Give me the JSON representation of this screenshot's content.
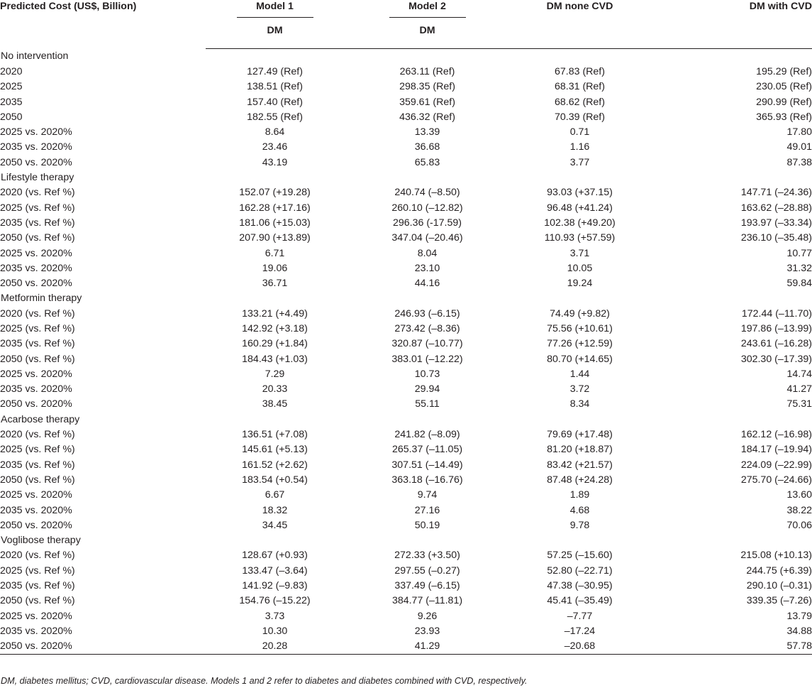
{
  "columns": {
    "label": "Predicted Cost (US$, Billion)",
    "model1": "Model 1",
    "model1_sub": "DM",
    "model2": "Model 2",
    "model2_sub": "DM",
    "dm_none_cvd": "DM none CVD",
    "dm_with_cvd": "DM with CVD"
  },
  "groups": [
    {
      "title": "No intervention",
      "rows": [
        {
          "label": "2020",
          "v": [
            "127.49 (Ref)",
            "263.11 (Ref)",
            "67.83 (Ref)",
            "195.29 (Ref)"
          ]
        },
        {
          "label": "2025",
          "v": [
            "138.51 (Ref)",
            "298.35 (Ref)",
            "68.31 (Ref)",
            "230.05 (Ref)"
          ]
        },
        {
          "label": "2035",
          "v": [
            "157.40 (Ref)",
            "359.61 (Ref)",
            "68.62 (Ref)",
            "290.99 (Ref)"
          ]
        },
        {
          "label": "2050",
          "v": [
            "182.55 (Ref)",
            "436.32 (Ref)",
            "70.39 (Ref)",
            "365.93 (Ref)"
          ]
        },
        {
          "label": "2025 vs. 2020%",
          "v": [
            "8.64",
            "13.39",
            "0.71",
            "17.80"
          ]
        },
        {
          "label": "2035 vs. 2020%",
          "v": [
            "23.46",
            "36.68",
            "1.16",
            "49.01"
          ]
        },
        {
          "label": "2050 vs. 2020%",
          "v": [
            "43.19",
            "65.83",
            "3.77",
            "87.38"
          ]
        }
      ]
    },
    {
      "title": "Lifestyle therapy",
      "rows": [
        {
          "label": "2020 (vs. Ref %)",
          "v": [
            "152.07 (+19.28)",
            "240.74 (–8.50)",
            "93.03 (+37.15)",
            "147.71 (–24.36)"
          ]
        },
        {
          "label": "2025 (vs. Ref %)",
          "v": [
            "162.28 (+17.16)",
            "260.10 (–12.82)",
            "96.48 (+41.24)",
            "163.62 (–28.88)"
          ]
        },
        {
          "label": "2035 (vs. Ref %)",
          "v": [
            "181.06 (+15.03)",
            "296.36 (-17.59)",
            "102.38 (+49.20)",
            "193.97 (–33.34)"
          ]
        },
        {
          "label": "2050 (vs. Ref %)",
          "v": [
            "207.90 (+13.89)",
            "347.04 (–20.46)",
            "110.93 (+57.59)",
            "236.10 (–35.48)"
          ]
        },
        {
          "label": "2025 vs. 2020%",
          "v": [
            "6.71",
            "8.04",
            "3.71",
            "10.77"
          ]
        },
        {
          "label": "2035 vs. 2020%",
          "v": [
            "19.06",
            "23.10",
            "10.05",
            "31.32"
          ]
        },
        {
          "label": "2050 vs. 2020%",
          "v": [
            "36.71",
            "44.16",
            "19.24",
            "59.84"
          ]
        }
      ]
    },
    {
      "title": "Metformin therapy",
      "rows": [
        {
          "label": "2020 (vs. Ref %)",
          "v": [
            "133.21 (+4.49)",
            "246.93 (–6.15)",
            "74.49 (+9.82)",
            "172.44 (–11.70)"
          ]
        },
        {
          "label": "2025 (vs. Ref %)",
          "v": [
            "142.92 (+3.18)",
            "273.42 (–8.36)",
            "75.56 (+10.61)",
            "197.86 (–13.99)"
          ]
        },
        {
          "label": "2035 (vs. Ref %)",
          "v": [
            "160.29 (+1.84)",
            "320.87 (–10.77)",
            "77.26 (+12.59)",
            "243.61 (–16.28)"
          ]
        },
        {
          "label": "2050 (vs. Ref %)",
          "v": [
            "184.43 (+1.03)",
            "383.01 (–12.22)",
            "80.70 (+14.65)",
            "302.30 (–17.39)"
          ]
        },
        {
          "label": "2025 vs. 2020%",
          "v": [
            "7.29",
            "10.73",
            "1.44",
            "14.74"
          ]
        },
        {
          "label": "2035 vs. 2020%",
          "v": [
            "20.33",
            "29.94",
            "3.72",
            "41.27"
          ]
        },
        {
          "label": "2050 vs. 2020%",
          "v": [
            "38.45",
            "55.11",
            "8.34",
            "75.31"
          ]
        }
      ]
    },
    {
      "title": "Acarbose therapy",
      "rows": [
        {
          "label": "2020 (vs. Ref %)",
          "v": [
            "136.51 (+7.08)",
            "241.82 (–8.09)",
            "79.69 (+17.48)",
            "162.12 (–16.98)"
          ]
        },
        {
          "label": "2025 (vs. Ref %)",
          "v": [
            "145.61 (+5.13)",
            "265.37 (–11.05)",
            "81.20 (+18.87)",
            "184.17 (–19.94)"
          ]
        },
        {
          "label": "2035 (vs. Ref %)",
          "v": [
            "161.52 (+2.62)",
            "307.51 (–14.49)",
            "83.42 (+21.57)",
            "224.09 (–22.99)"
          ]
        },
        {
          "label": "2050 (vs. Ref %)",
          "v": [
            "183.54 (+0.54)",
            "363.18 (–16.76)",
            "87.48 (+24.28)",
            "275.70 (–24.66)"
          ]
        },
        {
          "label": "2025 vs. 2020%",
          "v": [
            "6.67",
            "9.74",
            "1.89",
            "13.60"
          ]
        },
        {
          "label": "2035 vs. 2020%",
          "v": [
            "18.32",
            "27.16",
            "4.68",
            "38.22"
          ]
        },
        {
          "label": "2050 vs. 2020%",
          "v": [
            "34.45",
            "50.19",
            "9.78",
            "70.06"
          ]
        }
      ]
    },
    {
      "title": "Voglibose therapy",
      "rows": [
        {
          "label": "2020 (vs. Ref %)",
          "v": [
            "128.67 (+0.93)",
            "272.33 (+3.50)",
            "57.25 (–15.60)",
            "215.08 (+10.13)"
          ]
        },
        {
          "label": "2025 (vs. Ref %)",
          "v": [
            "133.47 (–3.64)",
            "297.55 (–0.27)",
            "52.80 (–22.71)",
            "244.75 (+6.39)"
          ]
        },
        {
          "label": "2035 (vs. Ref %)",
          "v": [
            "141.92 (–9.83)",
            "337.49 (–6.15)",
            "47.38 (–30.95)",
            "290.10 (–0.31)"
          ]
        },
        {
          "label": "2050 (vs. Ref %)",
          "v": [
            "154.76 (–15.22)",
            "384.77 (–11.81)",
            "45.41 (–35.49)",
            "339.35 (–7.26)"
          ]
        },
        {
          "label": "2025 vs. 2020%",
          "v": [
            "3.73",
            "9.26",
            "–7.77",
            "13.79"
          ]
        },
        {
          "label": "2035 vs. 2020%",
          "v": [
            "10.30",
            "23.93",
            "–17.24",
            "34.88"
          ]
        },
        {
          "label": "2050 vs. 2020%",
          "v": [
            "20.28",
            "41.29",
            "–20.68",
            "57.78"
          ]
        }
      ]
    }
  ],
  "footnote": "DM, diabetes mellitus; CVD, cardiovascular disease. Models 1 and 2 refer to diabetes and diabetes combined with CVD, respectively."
}
